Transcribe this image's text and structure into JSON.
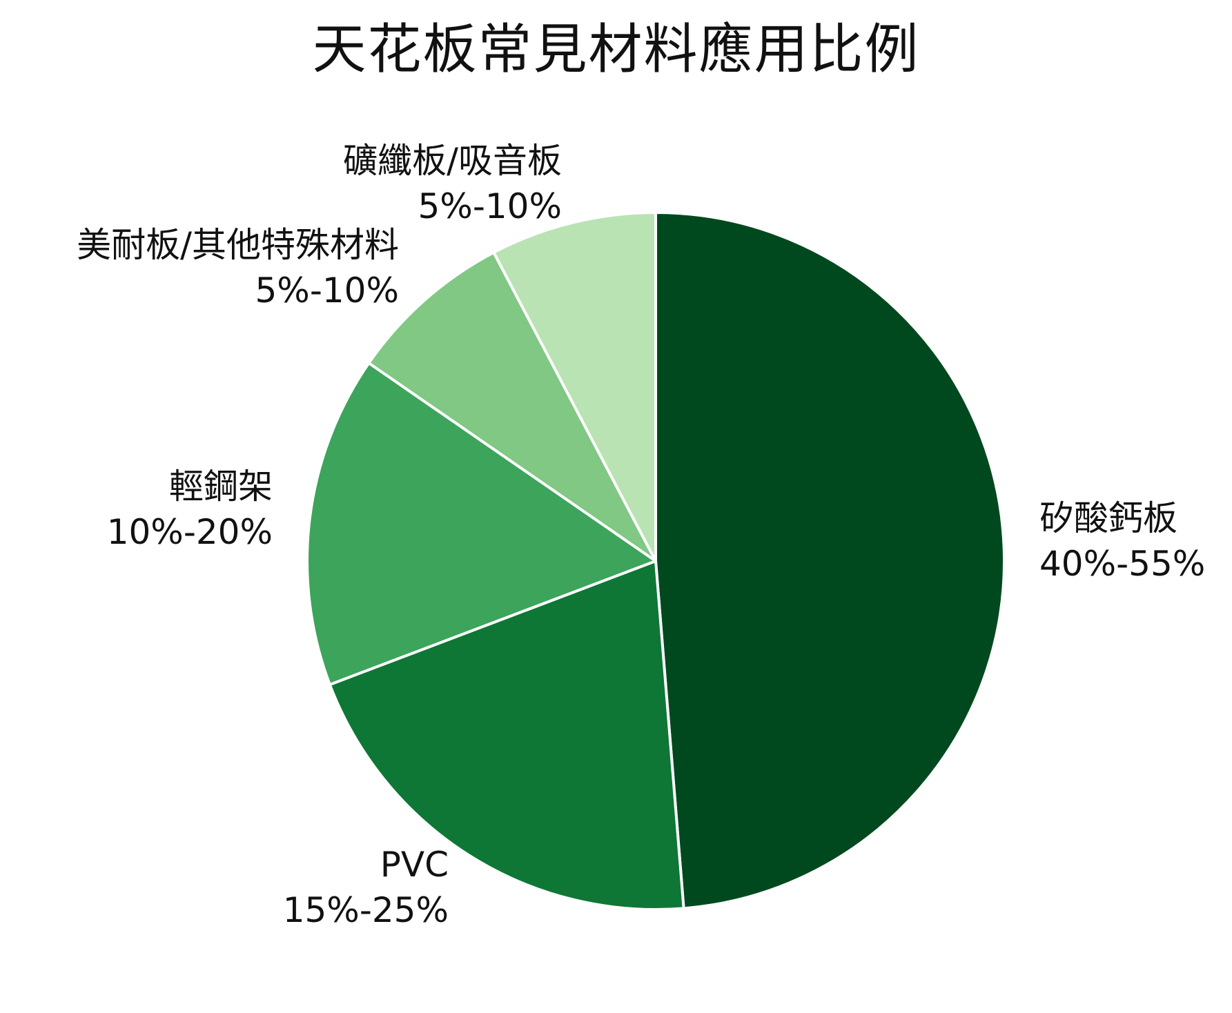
{
  "chart_data": {
    "type": "pie",
    "title": "天花板常見材料應用比例",
    "start_angle_deg": 0,
    "direction": "clockwise",
    "slices": [
      {
        "label": "矽酸鈣板",
        "range": "40%-55%",
        "value": 47.5,
        "color": "#00491e"
      },
      {
        "label": "PVC",
        "range": "15%-25%",
        "value": 20,
        "color": "#0e7736"
      },
      {
        "label": "輕鋼架",
        "range": "10%-20%",
        "value": 15,
        "color": "#3da45b"
      },
      {
        "label": "美耐板/其他特殊材料",
        "range": "5%-10%",
        "value": 7.5,
        "color": "#80c883"
      },
      {
        "label": "礦纖板/吸音板",
        "range": "5%-10%",
        "value": 7.5,
        "color": "#b9e3b3"
      }
    ],
    "legend": "none",
    "slice_border_color": "#ffffff"
  }
}
